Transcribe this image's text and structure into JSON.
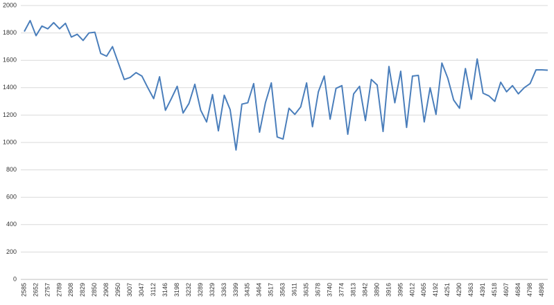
{
  "chart_data": {
    "type": "line",
    "categories": [
      "2585",
      null,
      "2652",
      null,
      "2757",
      null,
      "2789",
      null,
      "2808",
      null,
      "2829",
      null,
      "2850",
      null,
      "2908",
      null,
      "2950",
      null,
      "3007",
      null,
      "3047",
      null,
      "3112",
      null,
      "3146",
      null,
      "3198",
      null,
      "3232",
      null,
      "3289",
      null,
      "3329",
      null,
      "3363",
      null,
      "3399",
      null,
      "3435",
      null,
      "3464",
      null,
      "3517",
      null,
      "3563",
      null,
      "3611",
      null,
      "3635",
      null,
      "3678",
      null,
      "3740",
      null,
      "3774",
      null,
      "3813",
      null,
      "3842",
      null,
      "3890",
      null,
      "3916",
      null,
      "3995",
      null,
      "4012",
      null,
      "4065",
      null,
      "4192",
      null,
      "4251",
      null,
      "4290",
      null,
      "4363",
      null,
      "4391",
      null,
      "4518",
      null,
      "4607",
      null,
      "4684",
      null,
      "4798",
      null,
      "4898",
      null
    ],
    "values": [
      1810,
      1890,
      1780,
      1850,
      1830,
      1875,
      1830,
      1870,
      1770,
      1790,
      1745,
      1800,
      1805,
      1650,
      1630,
      1700,
      1580,
      1460,
      1475,
      1510,
      1485,
      1400,
      1320,
      1480,
      1235,
      1320,
      1410,
      1215,
      1285,
      1425,
      1235,
      1150,
      1350,
      1085,
      1345,
      1240,
      945,
      1280,
      1290,
      1430,
      1075,
      1290,
      1435,
      1040,
      1025,
      1250,
      1205,
      1260,
      1435,
      1115,
      1370,
      1485,
      1170,
      1395,
      1415,
      1060,
      1355,
      1410,
      1160,
      1460,
      1420,
      1080,
      1555,
      1290,
      1520,
      1110,
      1485,
      1490,
      1150,
      1400,
      1205,
      1580,
      1470,
      1310,
      1250,
      1540,
      1315,
      1610,
      1360,
      1340,
      1300,
      1440,
      1370,
      1415,
      1355,
      1400,
      1430,
      1530,
      1530,
      1528
    ],
    "color": "#4a7ebb",
    "ylim": [
      0,
      2000
    ],
    "yticks": [
      0,
      200,
      400,
      600,
      800,
      1000,
      1200,
      1400,
      1600,
      1800,
      2000
    ],
    "grid": true
  }
}
